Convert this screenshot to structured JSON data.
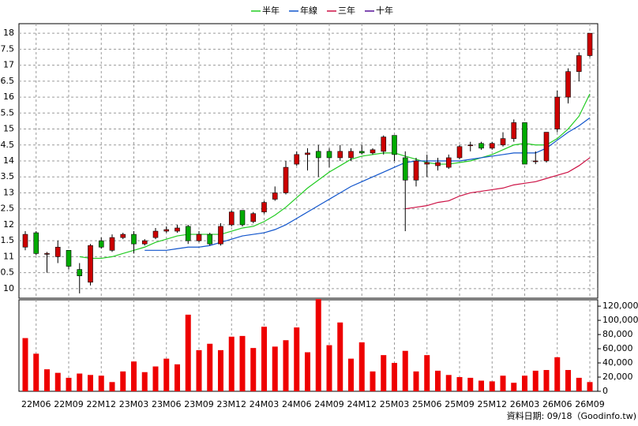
{
  "chart_data": {
    "type": "candlestick",
    "categories": [
      null,
      "22M06",
      null,
      null,
      "22M09",
      null,
      null,
      "22M12",
      null,
      null,
      "23M03",
      null,
      null,
      "23M06",
      null,
      null,
      "23M09",
      null,
      null,
      "23M12",
      null,
      null,
      "24M03",
      null,
      null,
      "24M06",
      null,
      null,
      "24M09",
      null,
      null,
      "24M12",
      null,
      null,
      "25M03",
      null,
      null,
      "25M06",
      null,
      null,
      "25M09",
      null,
      null,
      "25M12",
      null,
      null,
      "26M03",
      null,
      null,
      "26M06",
      null,
      null,
      "26M09"
    ],
    "open": [
      11.3,
      11.75,
      11.1,
      11.0,
      11.2,
      10.6,
      10.2,
      11.5,
      11.2,
      11.6,
      11.7,
      11.4,
      11.6,
      11.8,
      11.8,
      11.95,
      11.5,
      11.7,
      11.4,
      12.0,
      12.45,
      12.1,
      12.4,
      12.8,
      13.0,
      13.9,
      14.2,
      14.3,
      14.3,
      14.1,
      14.1,
      14.3,
      14.25,
      14.3,
      14.8,
      14.1,
      13.4,
      13.9,
      13.85,
      13.8,
      14.1,
      14.5,
      14.55,
      14.4,
      14.5,
      14.7,
      15.2,
      14.0,
      14.0,
      15.0,
      16.0,
      16.8,
      17.3
    ],
    "high": [
      11.8,
      11.8,
      11.15,
      11.5,
      11.2,
      10.8,
      11.4,
      11.6,
      11.7,
      11.75,
      11.8,
      11.55,
      11.9,
      11.95,
      12.0,
      12.0,
      11.8,
      11.75,
      12.05,
      12.45,
      12.45,
      12.4,
      12.75,
      13.2,
      14.0,
      14.3,
      14.4,
      14.5,
      14.4,
      14.5,
      14.4,
      14.5,
      14.4,
      14.8,
      14.8,
      14.3,
      14.1,
      14.2,
      14.1,
      14.2,
      14.5,
      14.6,
      14.6,
      14.6,
      14.9,
      15.3,
      15.2,
      14.3,
      14.9,
      16.2,
      16.9,
      17.4,
      18.0
    ],
    "low": [
      11.2,
      11.05,
      10.5,
      10.8,
      10.6,
      9.85,
      10.1,
      11.25,
      11.15,
      11.55,
      11.1,
      11.35,
      11.55,
      11.75,
      11.75,
      11.4,
      11.45,
      11.35,
      11.35,
      11.95,
      11.95,
      12.05,
      12.35,
      12.75,
      12.95,
      13.85,
      13.7,
      13.5,
      13.8,
      14.0,
      14.0,
      14.2,
      14.2,
      14.2,
      14.0,
      11.8,
      13.2,
      13.5,
      13.7,
      13.75,
      14.05,
      14.3,
      14.35,
      14.35,
      14.45,
      14.6,
      13.9,
      13.9,
      13.95,
      14.9,
      15.8,
      16.5,
      17.25
    ],
    "close": [
      11.7,
      11.1,
      11.1,
      11.3,
      10.7,
      10.4,
      11.35,
      11.3,
      11.6,
      11.7,
      11.4,
      11.5,
      11.8,
      11.85,
      11.9,
      11.5,
      11.7,
      11.4,
      11.95,
      12.4,
      12.0,
      12.35,
      12.7,
      13.0,
      13.8,
      14.2,
      14.25,
      14.1,
      14.1,
      14.3,
      14.3,
      14.25,
      14.35,
      14.75,
      14.2,
      13.4,
      14.0,
      13.95,
      13.95,
      14.1,
      14.45,
      14.5,
      14.4,
      14.55,
      14.7,
      15.2,
      13.9,
      14.0,
      14.9,
      16.0,
      16.8,
      17.3,
      18.0
    ],
    "up_color": "#cc0000",
    "down_color": "#00aa00",
    "ylim": [
      9.7,
      18.3
    ],
    "yticks": [
      10,
      {
        "value": 10.5,
        "label": "0.5"
      },
      11,
      {
        "value": 11.5,
        "label": "1.5"
      },
      12,
      {
        "value": 12.5,
        "label": "2.5"
      },
      13,
      {
        "value": 13.5,
        "label": "3.5"
      },
      14,
      {
        "value": 14.5,
        "label": "4.5"
      },
      15,
      {
        "value": 15.5,
        "label": "5.5"
      },
      16,
      {
        "value": 16.5,
        "label": "6.5"
      },
      17,
      {
        "value": 17.5,
        "label": "7.5"
      },
      18
    ],
    "grid": true,
    "series": [
      {
        "name": "半年",
        "color": "#22cc22",
        "values": [
          null,
          null,
          null,
          null,
          null,
          11.0,
          10.95,
          10.95,
          11.0,
          11.1,
          11.2,
          11.3,
          11.45,
          11.55,
          11.65,
          11.7,
          11.7,
          11.7,
          11.7,
          11.8,
          11.9,
          11.95,
          12.1,
          12.3,
          12.55,
          12.85,
          13.15,
          13.4,
          13.65,
          13.85,
          14.05,
          14.15,
          14.2,
          14.25,
          14.25,
          14.15,
          14.05,
          13.95,
          13.9,
          13.9,
          13.95,
          14.0,
          14.1,
          14.2,
          14.35,
          14.5,
          14.55,
          14.5,
          14.5,
          14.7,
          15.0,
          15.4,
          16.1
        ]
      },
      {
        "name": "年線",
        "color": "#1155cc",
        "values": [
          null,
          null,
          null,
          null,
          null,
          null,
          null,
          null,
          null,
          null,
          null,
          11.2,
          11.2,
          11.2,
          11.25,
          11.3,
          11.3,
          11.35,
          11.45,
          11.55,
          11.65,
          11.7,
          11.75,
          11.85,
          12.0,
          12.2,
          12.4,
          12.6,
          12.8,
          13.0,
          13.2,
          13.35,
          13.5,
          13.65,
          13.8,
          13.95,
          14.0,
          14.0,
          14.0,
          14.0,
          14.0,
          14.05,
          14.1,
          14.15,
          14.2,
          14.25,
          14.25,
          14.25,
          14.4,
          14.65,
          14.9,
          15.1,
          15.35
        ]
      },
      {
        "name": "三年",
        "color": "#cc1144",
        "values": [
          null,
          null,
          null,
          null,
          null,
          null,
          null,
          null,
          null,
          null,
          null,
          null,
          null,
          null,
          null,
          null,
          null,
          null,
          null,
          null,
          null,
          null,
          null,
          null,
          null,
          null,
          null,
          null,
          null,
          null,
          null,
          null,
          null,
          null,
          null,
          12.5,
          12.55,
          12.6,
          12.7,
          12.75,
          12.9,
          13.0,
          13.05,
          13.1,
          13.15,
          13.25,
          13.3,
          13.35,
          13.45,
          13.55,
          13.65,
          13.85,
          14.1
        ]
      },
      {
        "name": "十年",
        "color": "#551199",
        "values": [
          null,
          null,
          null,
          null,
          null,
          null,
          null,
          null,
          null,
          null,
          null,
          null,
          null,
          null,
          null,
          null,
          null,
          null,
          null,
          null,
          null,
          null,
          null,
          null,
          null,
          null,
          null,
          null,
          null,
          null,
          null,
          null,
          null,
          null,
          null,
          null,
          null,
          null,
          null,
          null,
          null,
          null,
          null,
          null,
          null,
          null,
          null,
          null,
          null,
          null,
          null,
          null,
          null
        ]
      }
    ],
    "volume": {
      "color": "#ee0000",
      "values": [
        75000,
        53000,
        31000,
        26000,
        19000,
        25000,
        23000,
        22000,
        13000,
        28000,
        42000,
        27000,
        35000,
        46000,
        38000,
        108000,
        58000,
        67000,
        58000,
        77000,
        78000,
        61000,
        91000,
        63000,
        72000,
        90000,
        55000,
        130000,
        65000,
        97000,
        46000,
        69000,
        28000,
        51000,
        40000,
        57000,
        28000,
        51000,
        29000,
        23000,
        20000,
        19000,
        15000,
        14000,
        22000,
        12000,
        22000,
        29000,
        30000,
        48000,
        30000,
        19000,
        13000
      ],
      "ylim": [
        0,
        129000
      ],
      "yticks": [
        0,
        {
          "value": 20000,
          "label": "20,000"
        },
        {
          "value": 40000,
          "label": "40,000"
        },
        {
          "value": 60000,
          "label": "60,000"
        },
        {
          "value": 80000,
          "label": "80,000"
        },
        {
          "value": 100000,
          "label": "100,000"
        },
        {
          "value": 120000,
          "label": "120,000"
        }
      ]
    },
    "footer": "資料日期: 09/18（Goodinfo.tw)"
  }
}
